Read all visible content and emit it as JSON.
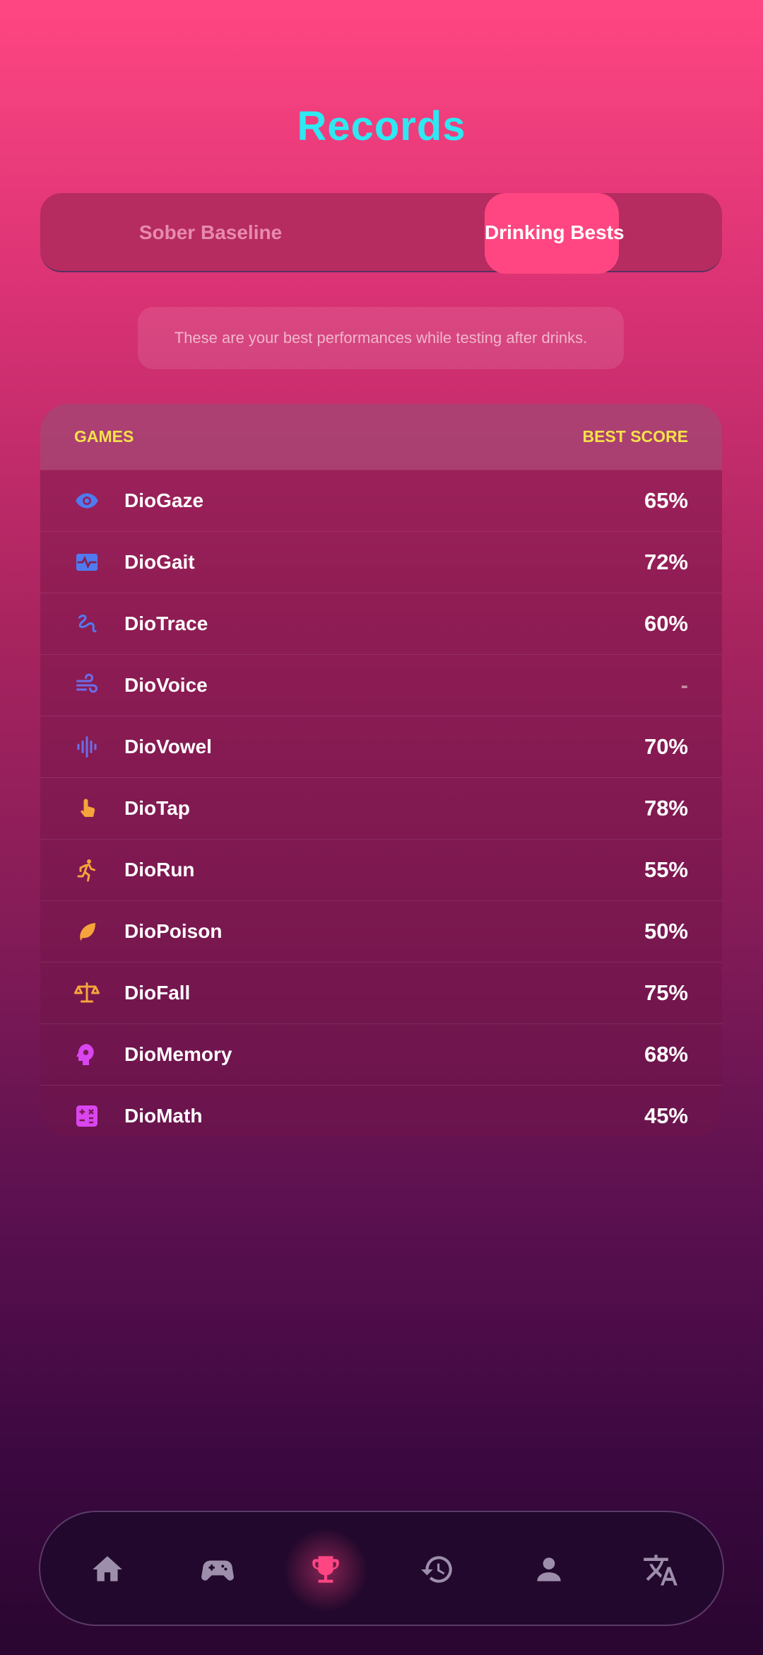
{
  "header": {
    "title": "Records"
  },
  "tabs": [
    {
      "label": "Sober Baseline",
      "active": false
    },
    {
      "label": "Drinking Bests",
      "active": true
    }
  ],
  "note": "These are your best performances while testing after drinks.",
  "table": {
    "columns": [
      "GAMES",
      "BEST SCORE"
    ],
    "rows": [
      [
        "DioGaze",
        "65%"
      ],
      [
        "DioGait",
        "72%"
      ],
      [
        "DioTrace",
        "60%"
      ],
      [
        "DioVoice",
        "-"
      ],
      [
        "DioVowel",
        "70%"
      ],
      [
        "DioTap",
        "78%"
      ],
      [
        "DioRun",
        "55%"
      ],
      [
        "DioPoison",
        "50%"
      ],
      [
        "DioFall",
        "75%"
      ],
      [
        "DioMemory",
        "68%"
      ],
      [
        "DioMath",
        "45%"
      ]
    ]
  }
}
